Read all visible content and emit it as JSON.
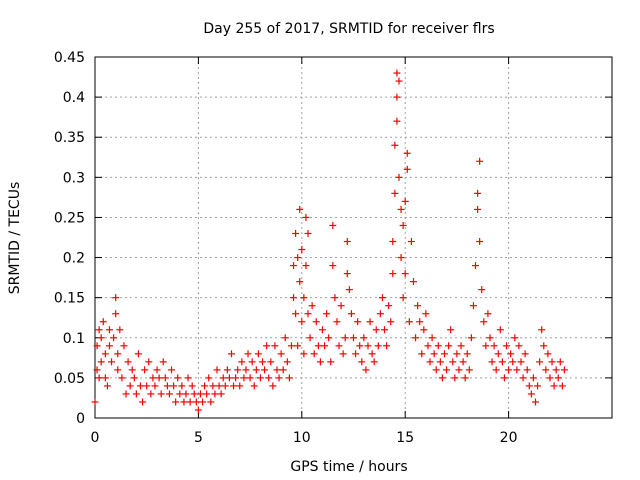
{
  "chart_data": {
    "type": "scatter",
    "title": "Day 255 of 2017, SRMTID for receiver flrs",
    "xlabel": "GPS time / hours",
    "ylabel": "SRMTID / TECUs",
    "xlim": [
      0,
      25
    ],
    "ylim": [
      0,
      0.45
    ],
    "xticks": [
      0,
      5,
      10,
      15,
      20
    ],
    "xtick_labels": [
      "0",
      "5",
      "10",
      "15",
      "20"
    ],
    "yticks": [
      0,
      0.05,
      0.1,
      0.15,
      0.2,
      0.25,
      0.3,
      0.35,
      0.4,
      0.45
    ],
    "ytick_labels": [
      "0",
      "0.05",
      "0.1",
      "0.15",
      "0.2",
      "0.25",
      "0.3",
      "0.35",
      "0.4",
      "0.45"
    ],
    "grid": true,
    "marker": "+",
    "color": "#ff0000",
    "series": [
      {
        "name": "SRMTID",
        "points": [
          [
            0.0,
            0.02
          ],
          [
            0.1,
            0.06
          ],
          [
            0.1,
            0.09
          ],
          [
            0.2,
            0.11
          ],
          [
            0.2,
            0.05
          ],
          [
            0.3,
            0.07
          ],
          [
            0.3,
            0.1
          ],
          [
            0.4,
            0.12
          ],
          [
            0.5,
            0.08
          ],
          [
            0.5,
            0.05
          ],
          [
            0.6,
            0.04
          ],
          [
            0.7,
            0.09
          ],
          [
            0.7,
            0.11
          ],
          [
            0.8,
            0.07
          ],
          [
            0.9,
            0.1
          ],
          [
            1.0,
            0.13
          ],
          [
            1.0,
            0.15
          ],
          [
            1.1,
            0.08
          ],
          [
            1.1,
            0.06
          ],
          [
            1.2,
            0.11
          ],
          [
            1.3,
            0.05
          ],
          [
            1.4,
            0.09
          ],
          [
            1.5,
            0.03
          ],
          [
            1.6,
            0.07
          ],
          [
            1.7,
            0.04
          ],
          [
            1.8,
            0.06
          ],
          [
            1.9,
            0.05
          ],
          [
            2.0,
            0.03
          ],
          [
            2.1,
            0.08
          ],
          [
            2.2,
            0.04
          ],
          [
            2.3,
            0.02
          ],
          [
            2.4,
            0.06
          ],
          [
            2.5,
            0.04
          ],
          [
            2.6,
            0.07
          ],
          [
            2.7,
            0.03
          ],
          [
            2.8,
            0.05
          ],
          [
            2.9,
            0.04
          ],
          [
            3.0,
            0.06
          ],
          [
            3.1,
            0.05
          ],
          [
            3.2,
            0.03
          ],
          [
            3.3,
            0.07
          ],
          [
            3.4,
            0.05
          ],
          [
            3.5,
            0.04
          ],
          [
            3.6,
            0.03
          ],
          [
            3.7,
            0.06
          ],
          [
            3.8,
            0.04
          ],
          [
            3.9,
            0.02
          ],
          [
            4.0,
            0.05
          ],
          [
            4.1,
            0.03
          ],
          [
            4.2,
            0.04
          ],
          [
            4.3,
            0.02
          ],
          [
            4.4,
            0.03
          ],
          [
            4.5,
            0.05
          ],
          [
            4.6,
            0.02
          ],
          [
            4.7,
            0.04
          ],
          [
            4.8,
            0.03
          ],
          [
            4.9,
            0.02
          ],
          [
            5.0,
            0.01
          ],
          [
            5.1,
            0.03
          ],
          [
            5.2,
            0.02
          ],
          [
            5.3,
            0.04
          ],
          [
            5.4,
            0.03
          ],
          [
            5.5,
            0.05
          ],
          [
            5.6,
            0.02
          ],
          [
            5.7,
            0.04
          ],
          [
            5.8,
            0.03
          ],
          [
            5.9,
            0.06
          ],
          [
            6.0,
            0.04
          ],
          [
            6.1,
            0.03
          ],
          [
            6.2,
            0.05
          ],
          [
            6.3,
            0.04
          ],
          [
            6.4,
            0.06
          ],
          [
            6.5,
            0.05
          ],
          [
            6.6,
            0.08
          ],
          [
            6.7,
            0.04
          ],
          [
            6.8,
            0.05
          ],
          [
            6.9,
            0.06
          ],
          [
            7.0,
            0.04
          ],
          [
            7.1,
            0.07
          ],
          [
            7.2,
            0.05
          ],
          [
            7.3,
            0.06
          ],
          [
            7.4,
            0.08
          ],
          [
            7.5,
            0.05
          ],
          [
            7.6,
            0.07
          ],
          [
            7.7,
            0.04
          ],
          [
            7.8,
            0.06
          ],
          [
            7.9,
            0.08
          ],
          [
            8.0,
            0.05
          ],
          [
            8.1,
            0.07
          ],
          [
            8.2,
            0.06
          ],
          [
            8.3,
            0.09
          ],
          [
            8.4,
            0.05
          ],
          [
            8.5,
            0.07
          ],
          [
            8.6,
            0.04
          ],
          [
            8.7,
            0.09
          ],
          [
            8.8,
            0.06
          ],
          [
            8.9,
            0.05
          ],
          [
            9.0,
            0.08
          ],
          [
            9.1,
            0.06
          ],
          [
            9.2,
            0.1
          ],
          [
            9.3,
            0.07
          ],
          [
            9.4,
            0.05
          ],
          [
            9.5,
            0.09
          ],
          [
            9.6,
            0.19
          ],
          [
            9.6,
            0.15
          ],
          [
            9.7,
            0.23
          ],
          [
            9.7,
            0.13
          ],
          [
            9.8,
            0.2
          ],
          [
            9.8,
            0.09
          ],
          [
            9.9,
            0.26
          ],
          [
            9.9,
            0.17
          ],
          [
            10.0,
            0.12
          ],
          [
            10.0,
            0.21
          ],
          [
            10.1,
            0.15
          ],
          [
            10.1,
            0.08
          ],
          [
            10.2,
            0.25
          ],
          [
            10.2,
            0.19
          ],
          [
            10.3,
            0.23
          ],
          [
            10.3,
            0.13
          ],
          [
            10.4,
            0.1
          ],
          [
            10.5,
            0.14
          ],
          [
            10.6,
            0.08
          ],
          [
            10.7,
            0.12
          ],
          [
            10.8,
            0.09
          ],
          [
            10.9,
            0.07
          ],
          [
            11.0,
            0.11
          ],
          [
            11.1,
            0.09
          ],
          [
            11.2,
            0.13
          ],
          [
            11.3,
            0.1
          ],
          [
            11.4,
            0.07
          ],
          [
            11.5,
            0.24
          ],
          [
            11.5,
            0.19
          ],
          [
            11.6,
            0.15
          ],
          [
            11.7,
            0.12
          ],
          [
            11.8,
            0.09
          ],
          [
            11.9,
            0.14
          ],
          [
            12.0,
            0.08
          ],
          [
            12.1,
            0.1
          ],
          [
            12.2,
            0.18
          ],
          [
            12.2,
            0.22
          ],
          [
            12.3,
            0.16
          ],
          [
            12.4,
            0.13
          ],
          [
            12.5,
            0.1
          ],
          [
            12.6,
            0.08
          ],
          [
            12.7,
            0.12
          ],
          [
            12.8,
            0.09
          ],
          [
            12.9,
            0.07
          ],
          [
            13.0,
            0.1
          ],
          [
            13.1,
            0.06
          ],
          [
            13.2,
            0.09
          ],
          [
            13.3,
            0.12
          ],
          [
            13.4,
            0.08
          ],
          [
            13.5,
            0.07
          ],
          [
            13.6,
            0.11
          ],
          [
            13.7,
            0.09
          ],
          [
            13.8,
            0.13
          ],
          [
            13.9,
            0.15
          ],
          [
            14.0,
            0.11
          ],
          [
            14.1,
            0.09
          ],
          [
            14.2,
            0.14
          ],
          [
            14.3,
            0.12
          ],
          [
            14.4,
            0.18
          ],
          [
            14.4,
            0.22
          ],
          [
            14.5,
            0.28
          ],
          [
            14.5,
            0.34
          ],
          [
            14.6,
            0.37
          ],
          [
            14.6,
            0.43
          ],
          [
            14.6,
            0.4
          ],
          [
            14.7,
            0.42
          ],
          [
            14.7,
            0.3
          ],
          [
            14.8,
            0.26
          ],
          [
            14.8,
            0.2
          ],
          [
            14.9,
            0.15
          ],
          [
            14.9,
            0.24
          ],
          [
            15.0,
            0.27
          ],
          [
            15.0,
            0.18
          ],
          [
            15.1,
            0.33
          ],
          [
            15.1,
            0.31
          ],
          [
            15.2,
            0.12
          ],
          [
            15.3,
            0.22
          ],
          [
            15.4,
            0.17
          ],
          [
            15.5,
            0.1
          ],
          [
            15.6,
            0.14
          ],
          [
            15.7,
            0.12
          ],
          [
            15.8,
            0.08
          ],
          [
            15.9,
            0.11
          ],
          [
            16.0,
            0.13
          ],
          [
            16.1,
            0.09
          ],
          [
            16.2,
            0.07
          ],
          [
            16.3,
            0.1
          ],
          [
            16.4,
            0.08
          ],
          [
            16.5,
            0.06
          ],
          [
            16.6,
            0.09
          ],
          [
            16.7,
            0.07
          ],
          [
            16.8,
            0.05
          ],
          [
            16.9,
            0.08
          ],
          [
            17.0,
            0.06
          ],
          [
            17.1,
            0.09
          ],
          [
            17.2,
            0.11
          ],
          [
            17.3,
            0.07
          ],
          [
            17.4,
            0.05
          ],
          [
            17.5,
            0.08
          ],
          [
            17.6,
            0.06
          ],
          [
            17.7,
            0.09
          ],
          [
            17.8,
            0.07
          ],
          [
            17.9,
            0.05
          ],
          [
            18.0,
            0.08
          ],
          [
            18.1,
            0.06
          ],
          [
            18.2,
            0.1
          ],
          [
            18.3,
            0.14
          ],
          [
            18.4,
            0.19
          ],
          [
            18.5,
            0.26
          ],
          [
            18.5,
            0.28
          ],
          [
            18.6,
            0.32
          ],
          [
            18.6,
            0.22
          ],
          [
            18.7,
            0.16
          ],
          [
            18.8,
            0.12
          ],
          [
            18.9,
            0.09
          ],
          [
            19.0,
            0.13
          ],
          [
            19.1,
            0.1
          ],
          [
            19.2,
            0.07
          ],
          [
            19.3,
            0.09
          ],
          [
            19.4,
            0.06
          ],
          [
            19.5,
            0.08
          ],
          [
            19.6,
            0.11
          ],
          [
            19.7,
            0.07
          ],
          [
            19.8,
            0.05
          ],
          [
            19.9,
            0.09
          ],
          [
            20.0,
            0.06
          ],
          [
            20.1,
            0.08
          ],
          [
            20.2,
            0.07
          ],
          [
            20.3,
            0.1
          ],
          [
            20.4,
            0.06
          ],
          [
            20.5,
            0.09
          ],
          [
            20.6,
            0.07
          ],
          [
            20.7,
            0.05
          ],
          [
            20.8,
            0.08
          ],
          [
            20.9,
            0.06
          ],
          [
            21.0,
            0.04
          ],
          [
            21.1,
            0.03
          ],
          [
            21.2,
            0.05
          ],
          [
            21.3,
            0.02
          ],
          [
            21.4,
            0.04
          ],
          [
            21.5,
            0.07
          ],
          [
            21.6,
            0.11
          ],
          [
            21.7,
            0.09
          ],
          [
            21.8,
            0.06
          ],
          [
            21.9,
            0.08
          ],
          [
            22.0,
            0.05
          ],
          [
            22.1,
            0.07
          ],
          [
            22.2,
            0.04
          ],
          [
            22.3,
            0.06
          ],
          [
            22.4,
            0.05
          ],
          [
            22.5,
            0.07
          ],
          [
            22.6,
            0.04
          ],
          [
            22.7,
            0.06
          ]
        ]
      }
    ]
  }
}
